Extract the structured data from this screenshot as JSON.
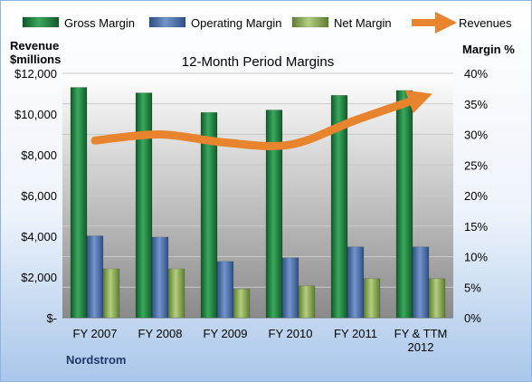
{
  "company": "Nordstrom",
  "chart_data": {
    "type": "bar",
    "title": "12-Month Period Margins",
    "categories": [
      [
        "FY 2007"
      ],
      [
        "FY 2008"
      ],
      [
        "FY 2009"
      ],
      [
        "FY 2010"
      ],
      [
        "FY 2011"
      ],
      [
        "FY & TTM",
        "2012"
      ]
    ],
    "series": [
      {
        "name": "Gross Margin",
        "axis": "right",
        "kind": "bar",
        "color": "#1e7a3c",
        "values": [
          37.7,
          36.8,
          33.6,
          34.0,
          36.4,
          37.2
        ]
      },
      {
        "name": "Operating Margin",
        "axis": "right",
        "kind": "bar",
        "color": "#4a6fa8",
        "values": [
          13.4,
          13.2,
          9.2,
          9.8,
          11.6,
          11.6
        ]
      },
      {
        "name": "Net Margin",
        "axis": "right",
        "kind": "bar",
        "color": "#8fb05a",
        "values": [
          8.0,
          8.0,
          4.7,
          5.2,
          6.4,
          6.4
        ]
      },
      {
        "name": "Revenues",
        "axis": "left",
        "kind": "line",
        "color": "#e8832e",
        "values": [
          8700,
          9000,
          8600,
          8500,
          9700,
          10800
        ]
      }
    ],
    "ylabel_left": [
      "Revenue",
      "$millions"
    ],
    "ylabel_right": "Margin %",
    "y_left": {
      "min": 0,
      "max": 12000,
      "ticks": [
        "$-",
        "$2,000",
        "$4,000",
        "$6,000",
        "$8,000",
        "$10,000",
        "$12,000"
      ]
    },
    "y_right": {
      "min": 0,
      "max": 40,
      "ticks": [
        "0%",
        "5%",
        "10%",
        "15%",
        "20%",
        "25%",
        "30%",
        "35%",
        "40%"
      ]
    },
    "legend_position": "top",
    "grid": true
  }
}
